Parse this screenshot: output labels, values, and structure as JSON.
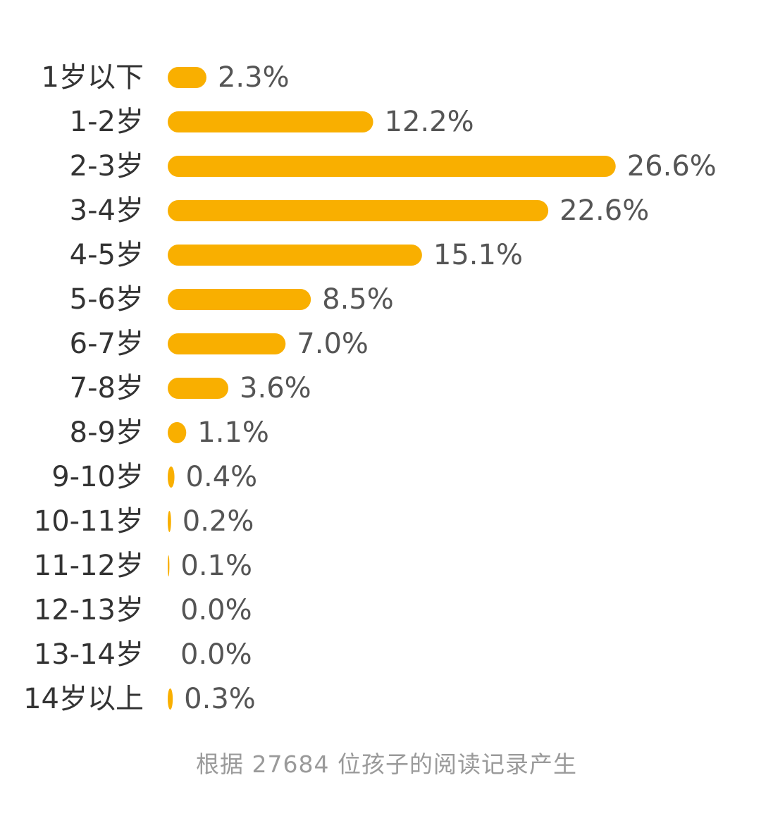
{
  "chart_data": {
    "type": "bar",
    "orientation": "horizontal",
    "categories": [
      "1岁以下",
      "1-2岁",
      "2-3岁",
      "3-4岁",
      "4-5岁",
      "5-6岁",
      "6-7岁",
      "7-8岁",
      "8-9岁",
      "9-10岁",
      "10-11岁",
      "11-12岁",
      "12-13岁",
      "13-14岁",
      "14岁以上"
    ],
    "values": [
      2.3,
      12.2,
      26.6,
      22.6,
      15.1,
      8.5,
      7.0,
      3.6,
      1.1,
      0.4,
      0.2,
      0.1,
      0.0,
      0.0,
      0.3
    ],
    "value_labels": [
      "2.3%",
      "12.2%",
      "26.6%",
      "22.6%",
      "15.1%",
      "8.5%",
      "7.0%",
      "3.6%",
      "1.1%",
      "0.4%",
      "0.2%",
      "0.1%",
      "0.0%",
      "0.0%",
      "0.3%"
    ],
    "bar_color": "#F9AF00",
    "grid": false,
    "legend": "none"
  },
  "footnote": "根据 27684 位孩子的阅读记录产生"
}
